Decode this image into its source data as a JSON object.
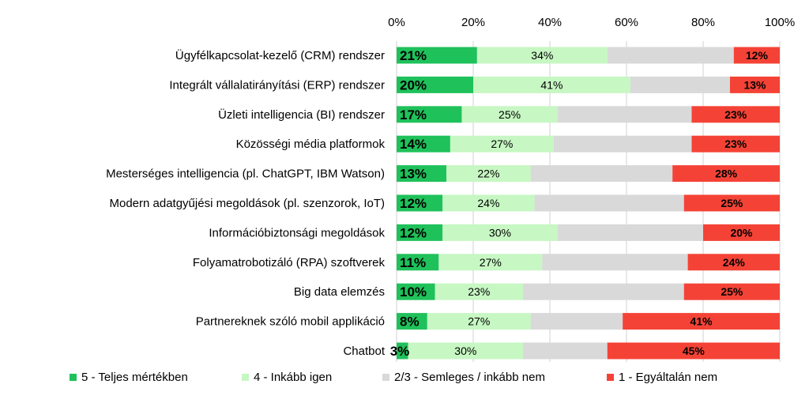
{
  "chart_data": {
    "type": "bar",
    "orientation": "horizontal",
    "stacked": true,
    "normalized": true,
    "title": "",
    "xlabel": "",
    "ylabel": "",
    "xlim": [
      0,
      100
    ],
    "x_ticks": [
      "0%",
      "20%",
      "40%",
      "60%",
      "80%",
      "100%"
    ],
    "x_axis_position": "top",
    "grid": "vertical",
    "legend_position": "bottom",
    "categories": [
      "Ügyfélkapcsolat-kezelő (CRM) rendszer",
      "Integrált vállalatirányítási (ERP) rendszer",
      "Üzleti intelligencia (BI) rendszer",
      "Közösségi média platformok",
      "Mesterséges intelligencia (pl. ChatGPT, IBM Watson)",
      "Modern adatgyűjési megoldások (pl. szenzorok, IoT)",
      "Információbiztonsági megoldások",
      "Folyamatrobotizáló (RPA) szoftverek",
      "Big data elemzés",
      "Partnereknek szóló mobil applikáció",
      "Chatbot"
    ],
    "series": [
      {
        "name": "5 - Teljes mértékben",
        "color": "#1fc15a",
        "values": [
          21,
          20,
          17,
          14,
          13,
          12,
          12,
          11,
          10,
          8,
          3
        ],
        "labels": [
          "21%",
          "20%",
          "17%",
          "14%",
          "13%",
          "12%",
          "12%",
          "11%",
          "10%",
          "8%",
          "3%"
        ]
      },
      {
        "name": "4 - Inkább igen",
        "color": "#c7f7c3",
        "values": [
          34,
          41,
          25,
          27,
          22,
          24,
          30,
          27,
          23,
          27,
          30
        ],
        "labels": [
          "34%",
          "41%",
          "25%",
          "27%",
          "22%",
          "24%",
          "30%",
          "27%",
          "23%",
          "27%",
          "30%"
        ]
      },
      {
        "name": "2/3 - Semleges / inkább nem",
        "color": "#d9d9d9",
        "values": [
          33,
          26,
          35,
          36,
          37,
          39,
          38,
          38,
          42,
          24,
          22
        ],
        "labels": []
      },
      {
        "name": "1 - Egyáltalán nem",
        "color": "#f44336",
        "values": [
          12,
          13,
          23,
          23,
          28,
          25,
          20,
          24,
          25,
          41,
          45
        ],
        "labels": [
          "12%",
          "13%",
          "23%",
          "23%",
          "28%",
          "25%",
          "20%",
          "24%",
          "25%",
          "41%",
          "45%"
        ]
      }
    ]
  }
}
